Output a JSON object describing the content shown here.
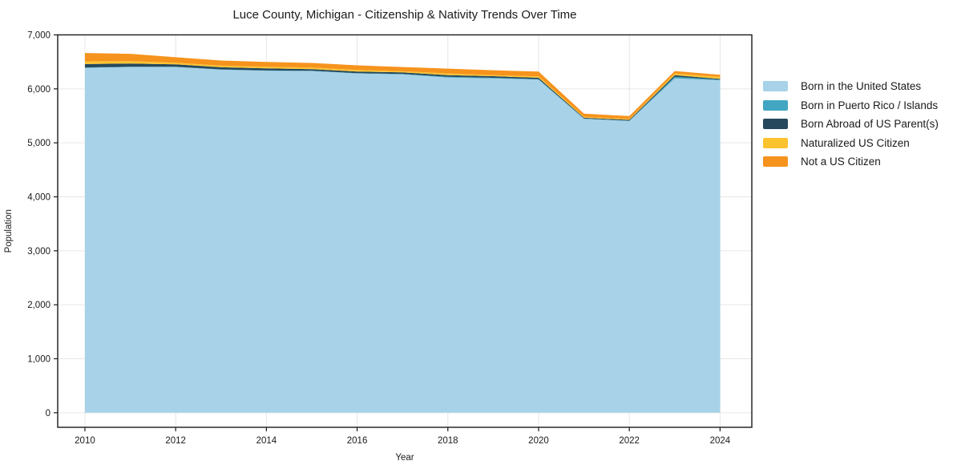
{
  "chart_data": {
    "type": "area",
    "stacked": true,
    "title": "Luce County, Michigan - Citizenship & Nativity Trends Over Time",
    "xlabel": "Year",
    "ylabel": "Population",
    "x": [
      2010,
      2011,
      2012,
      2013,
      2014,
      2015,
      2016,
      2017,
      2018,
      2019,
      2020,
      2021,
      2022,
      2023,
      2024
    ],
    "x_ticks": [
      2010,
      2012,
      2014,
      2016,
      2018,
      2020,
      2022,
      2024
    ],
    "y_ticks": [
      0,
      1000,
      2000,
      3000,
      4000,
      5000,
      6000,
      7000
    ],
    "y_ticklabels": [
      "0",
      "1,000",
      "2,000",
      "3,000",
      "4,000",
      "5,000",
      "6,000",
      "7,000"
    ],
    "xlim": [
      2009.4,
      2024.7
    ],
    "ylim": [
      -270,
      7000
    ],
    "grid": true,
    "grid_color": "#e6e6e6",
    "plot_bg": "#ffffff",
    "spine_color": "#1a1a1a",
    "legend_position": "right-outside",
    "series": [
      {
        "name": "Born in the United States",
        "color": "#a7d2e8",
        "values": [
          6390,
          6405,
          6405,
          6355,
          6335,
          6330,
          6285,
          6270,
          6210,
          6195,
          6170,
          5445,
          5405,
          6195,
          6160
        ]
      },
      {
        "name": "Born in Puerto Rico / Islands",
        "color": "#42a6c2",
        "values": [
          5,
          5,
          5,
          5,
          5,
          5,
          5,
          5,
          15,
          10,
          10,
          5,
          5,
          30,
          10
        ]
      },
      {
        "name": "Born Abroad of US Parent(s)",
        "color": "#26495e",
        "values": [
          65,
          60,
          45,
          40,
          40,
          30,
          30,
          30,
          30,
          30,
          25,
          15,
          15,
          30,
          15
        ]
      },
      {
        "name": "Naturalized US Citizen",
        "color": "#fdc32f",
        "values": [
          50,
          45,
          30,
          30,
          30,
          30,
          30,
          20,
          30,
          20,
          25,
          15,
          15,
          30,
          35
        ]
      },
      {
        "name": "Not a US Citizen",
        "color": "#f6931d",
        "values": [
          155,
          135,
          100,
          95,
          90,
          85,
          85,
          80,
          90,
          90,
          90,
          60,
          55,
          45,
          40
        ]
      }
    ]
  }
}
